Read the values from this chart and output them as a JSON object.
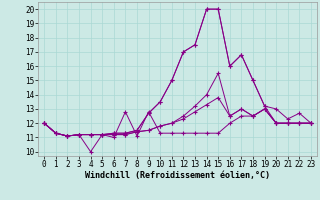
{
  "xlabel": "Windchill (Refroidissement éolien,°C)",
  "xlim": [
    -0.5,
    23.5
  ],
  "ylim": [
    9.7,
    20.5
  ],
  "yticks": [
    10,
    11,
    12,
    13,
    14,
    15,
    16,
    17,
    18,
    19,
    20
  ],
  "xticks": [
    0,
    1,
    2,
    3,
    4,
    5,
    6,
    7,
    8,
    9,
    10,
    11,
    12,
    13,
    14,
    15,
    16,
    17,
    18,
    19,
    20,
    21,
    22,
    23
  ],
  "bg_color": "#cce9e5",
  "line_color": "#880088",
  "grid_color": "#aad8d4",
  "lines": [
    [
      12.0,
      11.3,
      11.1,
      11.2,
      10.0,
      11.2,
      11.0,
      12.8,
      11.1,
      12.8,
      11.3,
      11.3,
      11.3,
      11.3,
      11.3,
      11.3,
      12.0,
      12.5,
      12.5,
      13.0,
      12.0,
      12.0,
      12.0,
      12.0
    ],
    [
      12.0,
      11.3,
      11.1,
      11.2,
      11.2,
      11.2,
      11.2,
      11.2,
      11.4,
      11.5,
      11.8,
      12.0,
      12.3,
      12.8,
      13.3,
      13.8,
      12.5,
      13.0,
      12.5,
      13.0,
      12.0,
      12.0,
      12.0,
      12.0
    ],
    [
      12.0,
      11.3,
      11.1,
      11.2,
      11.2,
      11.2,
      11.2,
      11.2,
      11.4,
      11.5,
      11.8,
      12.0,
      12.5,
      13.2,
      14.0,
      15.5,
      12.5,
      13.0,
      12.5,
      13.0,
      12.0,
      12.0,
      12.0,
      12.0
    ],
    [
      12.0,
      11.3,
      11.1,
      11.2,
      11.2,
      11.2,
      11.3,
      11.3,
      11.5,
      12.7,
      13.5,
      15.0,
      17.0,
      17.5,
      20.0,
      20.0,
      16.0,
      16.8,
      15.0,
      13.2,
      12.0,
      12.0,
      12.0,
      12.0
    ],
    [
      12.0,
      11.3,
      11.1,
      11.2,
      11.2,
      11.2,
      11.3,
      11.3,
      11.5,
      12.7,
      13.5,
      15.0,
      17.0,
      17.5,
      20.0,
      20.0,
      16.0,
      16.8,
      15.0,
      13.2,
      13.0,
      12.3,
      12.7,
      12.0
    ]
  ],
  "tick_fontsize": 5.5,
  "xlabel_fontsize": 6.0
}
